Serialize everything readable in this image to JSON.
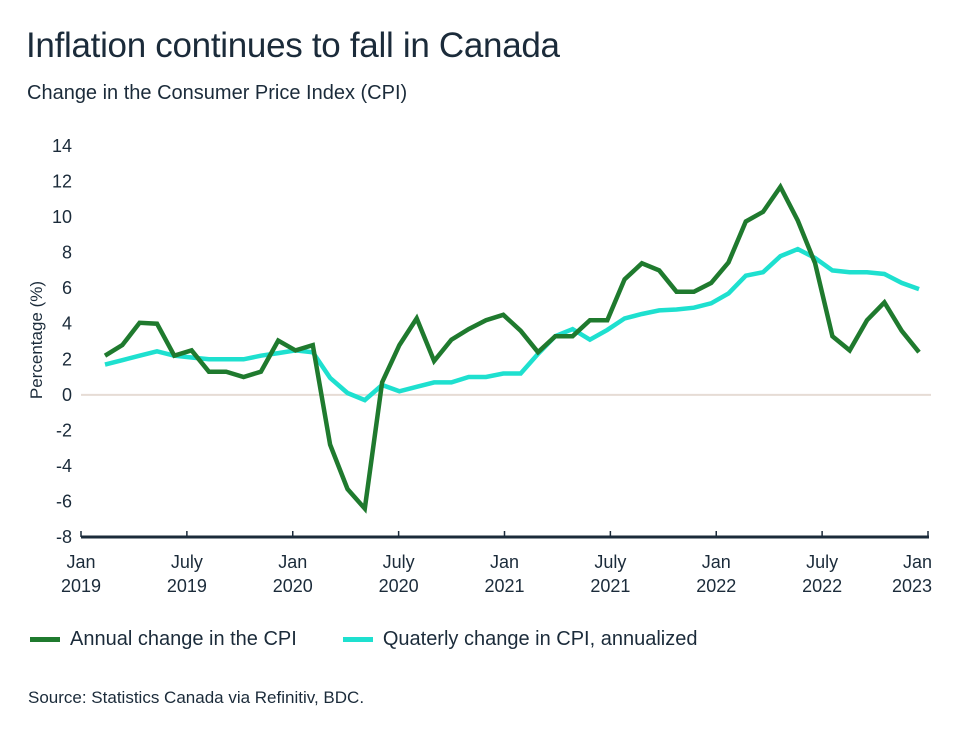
{
  "header": {
    "title": "Inflation continues to fall in Canada",
    "subtitle": "Change in the Consumer Price Index (CPI)"
  },
  "legend": [
    {
      "label": "Annual change in the CPI",
      "color": "#1f7a2e"
    },
    {
      "label": "Quaterly change in CPI, annualized",
      "color": "#1ee0cf"
    }
  ],
  "source": "Source: Statistics Canada via Refinitiv, BDC.",
  "chart_data": {
    "type": "line",
    "title": "Inflation continues to fall in Canada",
    "subtitle": "Change in the Consumer Price Index (CPI)",
    "xlabel": "",
    "ylabel": "Percentage (%)",
    "ylim": [
      -8,
      14
    ],
    "yticks": [
      14,
      12,
      10,
      8,
      6,
      4,
      2,
      0,
      -2,
      -4,
      -6,
      -8
    ],
    "xticks": [
      {
        "line1": "Jan",
        "line2": "2019",
        "month_index": 0
      },
      {
        "line1": "July",
        "line2": "2019",
        "month_index": 6
      },
      {
        "line1": "Jan",
        "line2": "2020",
        "month_index": 12
      },
      {
        "line1": "July",
        "line2": "2020",
        "month_index": 18
      },
      {
        "line1": "Jan",
        "line2": "2021",
        "month_index": 24
      },
      {
        "line1": "July",
        "line2": "2021",
        "month_index": 30
      },
      {
        "line1": "Jan",
        "line2": "2022",
        "month_index": 36
      },
      {
        "line1": "July",
        "line2": "2022",
        "month_index": 42
      },
      {
        "line1": "Jan",
        "line2": "2023",
        "month_index": 48
      }
    ],
    "x_start": "Feb 2019",
    "x_end": "Jan 2023",
    "x_frequency": "monthly",
    "reference_line": 0,
    "grid": false,
    "legend_position": "bottom",
    "series": [
      {
        "name": "Annual change in the CPI",
        "color": "#1f7a2e",
        "values": [
          2.2,
          2.8,
          4.05,
          4.0,
          2.2,
          2.5,
          1.3,
          1.3,
          1.0,
          1.3,
          3.05,
          2.5,
          2.8,
          -2.8,
          -5.3,
          -6.4,
          0.7,
          2.8,
          4.3,
          1.9,
          3.1,
          3.7,
          4.2,
          4.5,
          3.6,
          2.4,
          3.3,
          3.3,
          4.2,
          4.2,
          6.5,
          7.4,
          7.0,
          5.8,
          5.8,
          6.3,
          7.45,
          9.75,
          10.3,
          11.7,
          9.8,
          7.4,
          3.3,
          2.5,
          4.2,
          5.2,
          3.6,
          2.4
        ]
      },
      {
        "name": "Quaterly change in CPI, annualized",
        "color": "#1ee0cf",
        "values": [
          1.7,
          1.95,
          2.2,
          2.45,
          2.2,
          2.1,
          2.0,
          2.0,
          2.0,
          2.2,
          2.35,
          2.5,
          2.4,
          0.95,
          0.1,
          -0.3,
          0.55,
          0.2,
          0.45,
          0.7,
          0.7,
          1.0,
          1.0,
          1.2,
          1.2,
          2.3,
          3.3,
          3.7,
          3.1,
          3.65,
          4.3,
          4.55,
          4.75,
          4.8,
          4.9,
          5.15,
          5.7,
          6.7,
          6.9,
          7.8,
          8.2,
          7.7,
          7.0,
          6.9,
          6.9,
          6.8,
          6.3,
          5.95
        ]
      }
    ]
  }
}
